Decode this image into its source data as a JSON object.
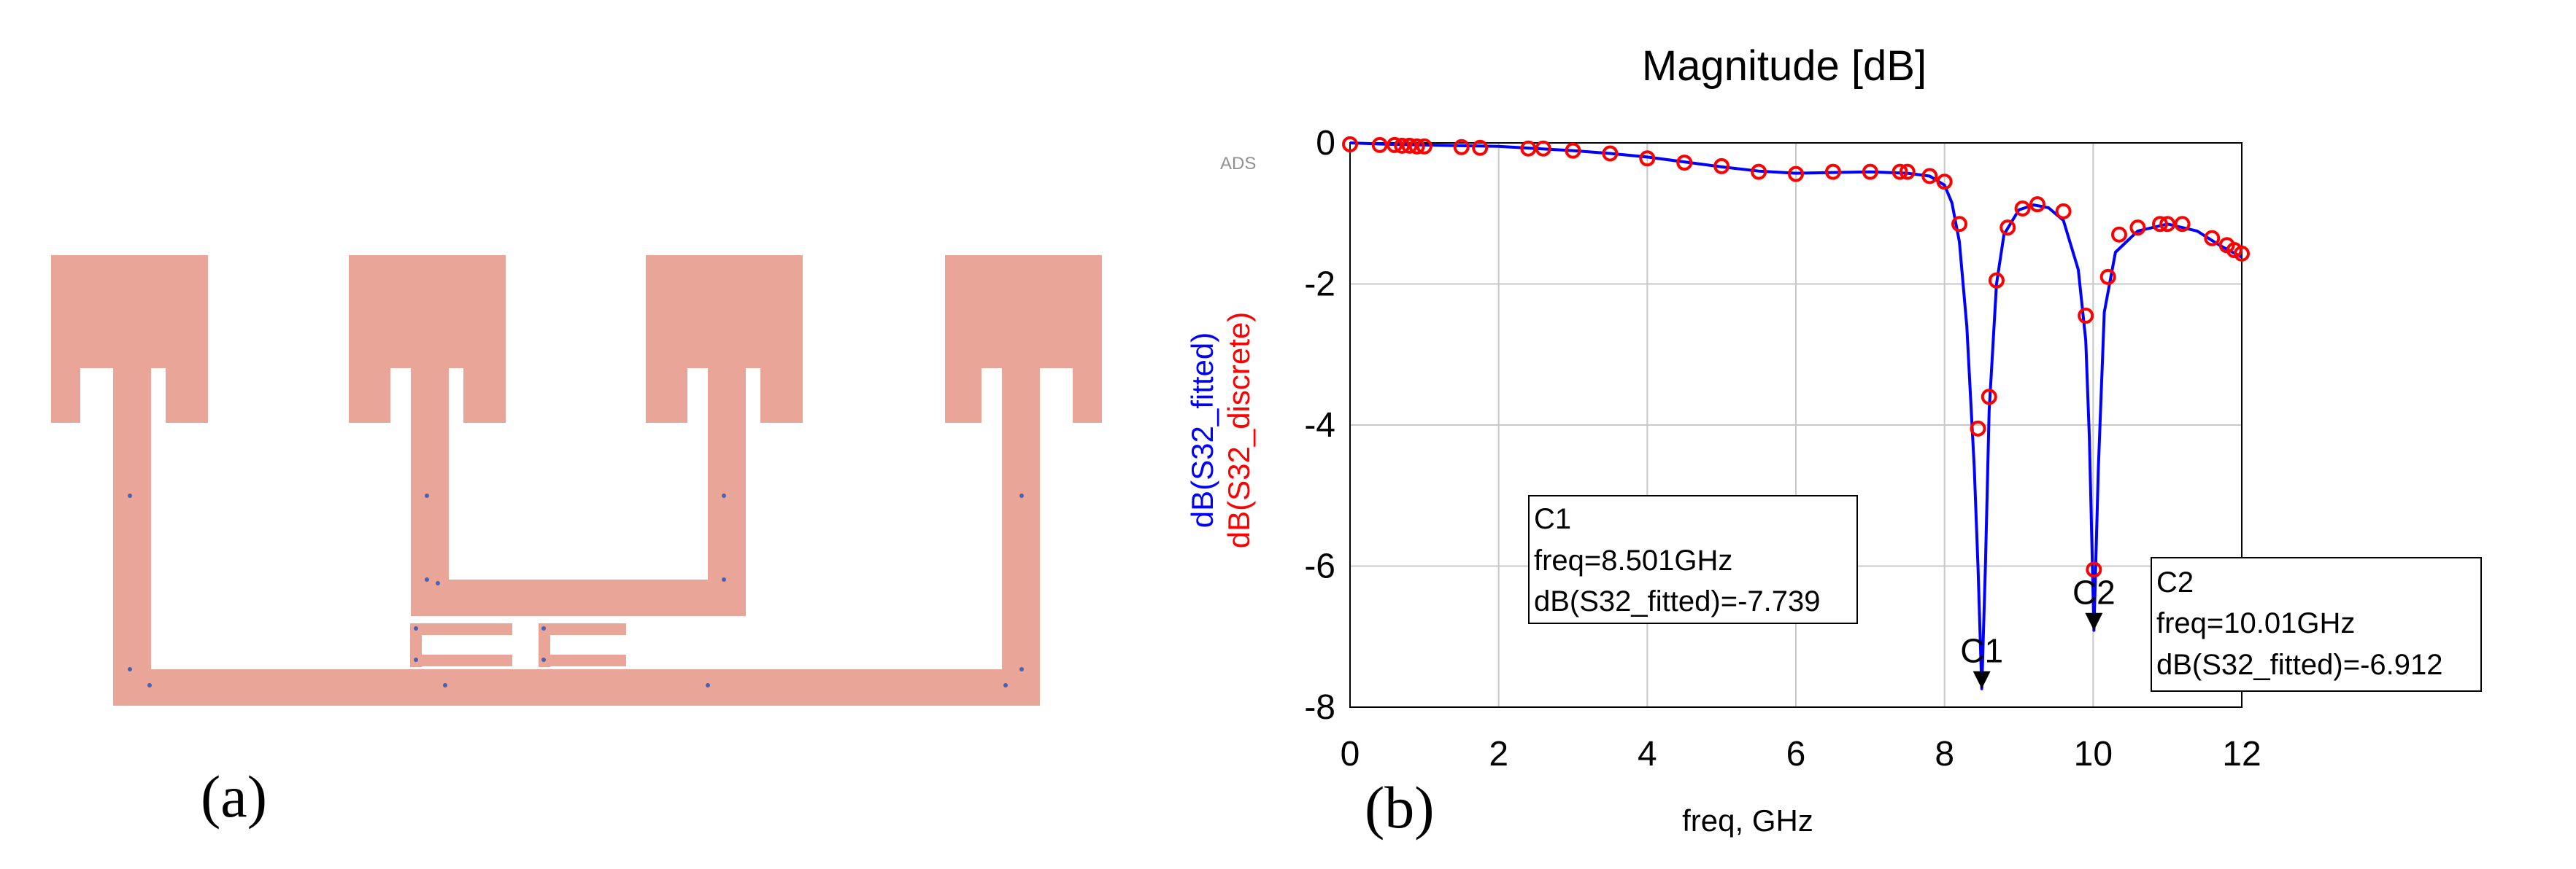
{
  "colors": {
    "layout_fill": "#e8a598",
    "fitted_line": "#0000ff",
    "discrete_marker": "#ff0000",
    "grid": "#c8c8c8",
    "port_dot": "#4a60b0"
  },
  "panel_a": {
    "label": "(a)",
    "description_icon": "microstrip-layout-icon"
  },
  "panel_b": {
    "label": "(b)"
  },
  "chart_data": {
    "type": "line",
    "title": "Magnitude [dB]",
    "watermark": "ADS",
    "xlabel": "freq, GHz",
    "ylabel_fitted": "dB(S32_fitted)",
    "ylabel_discrete": "dB(S32_discrete)",
    "xlim": [
      0,
      12
    ],
    "ylim": [
      -8,
      0
    ],
    "xticks": [
      0,
      2,
      4,
      6,
      8,
      10,
      12
    ],
    "yticks": [
      0,
      -2,
      -4,
      -6,
      -8
    ],
    "grid": true,
    "series": [
      {
        "name": "dB(S32_fitted)",
        "style": "line",
        "color": "#0000ff",
        "x": [
          0,
          0.5,
          1,
          1.5,
          2,
          2.5,
          3,
          3.5,
          4,
          4.5,
          5,
          5.5,
          6,
          6.5,
          7,
          7.5,
          7.8,
          8.0,
          8.1,
          8.2,
          8.3,
          8.4,
          8.45,
          8.501,
          8.55,
          8.6,
          8.7,
          8.8,
          9.0,
          9.2,
          9.4,
          9.6,
          9.8,
          9.9,
          9.95,
          10.01,
          10.07,
          10.15,
          10.3,
          10.6,
          11.0,
          11.4,
          11.7,
          12
        ],
        "y": [
          0,
          -0.02,
          -0.03,
          -0.04,
          -0.05,
          -0.08,
          -0.11,
          -0.15,
          -0.2,
          -0.27,
          -0.34,
          -0.4,
          -0.43,
          -0.42,
          -0.41,
          -0.43,
          -0.47,
          -0.6,
          -0.85,
          -1.4,
          -2.6,
          -4.6,
          -6.0,
          -7.739,
          -6.0,
          -3.8,
          -2.0,
          -1.3,
          -0.95,
          -0.88,
          -0.92,
          -1.1,
          -1.8,
          -2.8,
          -4.2,
          -6.912,
          -4.6,
          -2.4,
          -1.55,
          -1.25,
          -1.15,
          -1.25,
          -1.45,
          -1.62
        ]
      },
      {
        "name": "dB(S32_discrete)",
        "style": "markers",
        "color": "#ff0000",
        "x": [
          0,
          0.4,
          0.6,
          0.7,
          0.8,
          0.9,
          1.0,
          1.5,
          1.75,
          2.4,
          2.6,
          3.0,
          3.5,
          4.0,
          4.5,
          5.0,
          5.5,
          6.0,
          6.5,
          7.0,
          7.4,
          7.5,
          7.8,
          8.0,
          8.2,
          8.45,
          8.6,
          8.7,
          8.85,
          9.05,
          9.25,
          9.6,
          9.9,
          10.01,
          10.2,
          10.35,
          10.6,
          10.9,
          11.0,
          11.2,
          11.6,
          11.8,
          11.9,
          12.0
        ],
        "y": [
          -0.02,
          -0.03,
          -0.03,
          -0.04,
          -0.04,
          -0.05,
          -0.05,
          -0.06,
          -0.07,
          -0.08,
          -0.08,
          -0.11,
          -0.15,
          -0.22,
          -0.28,
          -0.33,
          -0.41,
          -0.44,
          -0.41,
          -0.41,
          -0.41,
          -0.41,
          -0.47,
          -0.55,
          -1.15,
          -4.05,
          -3.6,
          -1.95,
          -1.2,
          -0.93,
          -0.87,
          -0.97,
          -2.45,
          -6.05,
          -1.9,
          -1.3,
          -1.2,
          -1.15,
          -1.15,
          -1.15,
          -1.35,
          -1.45,
          -1.52,
          -1.57
        ]
      }
    ],
    "markers": [
      {
        "id": "C1",
        "x": 8.501,
        "y": -7.739,
        "box_lines": [
          "C1",
          "freq=8.501GHz",
          "dB(S32_fitted)=-7.739"
        ]
      },
      {
        "id": "C2",
        "x": 10.01,
        "y": -6.912,
        "box_lines": [
          "C2",
          "freq=10.01GHz",
          "dB(S32_fitted)=-6.912"
        ]
      }
    ]
  }
}
